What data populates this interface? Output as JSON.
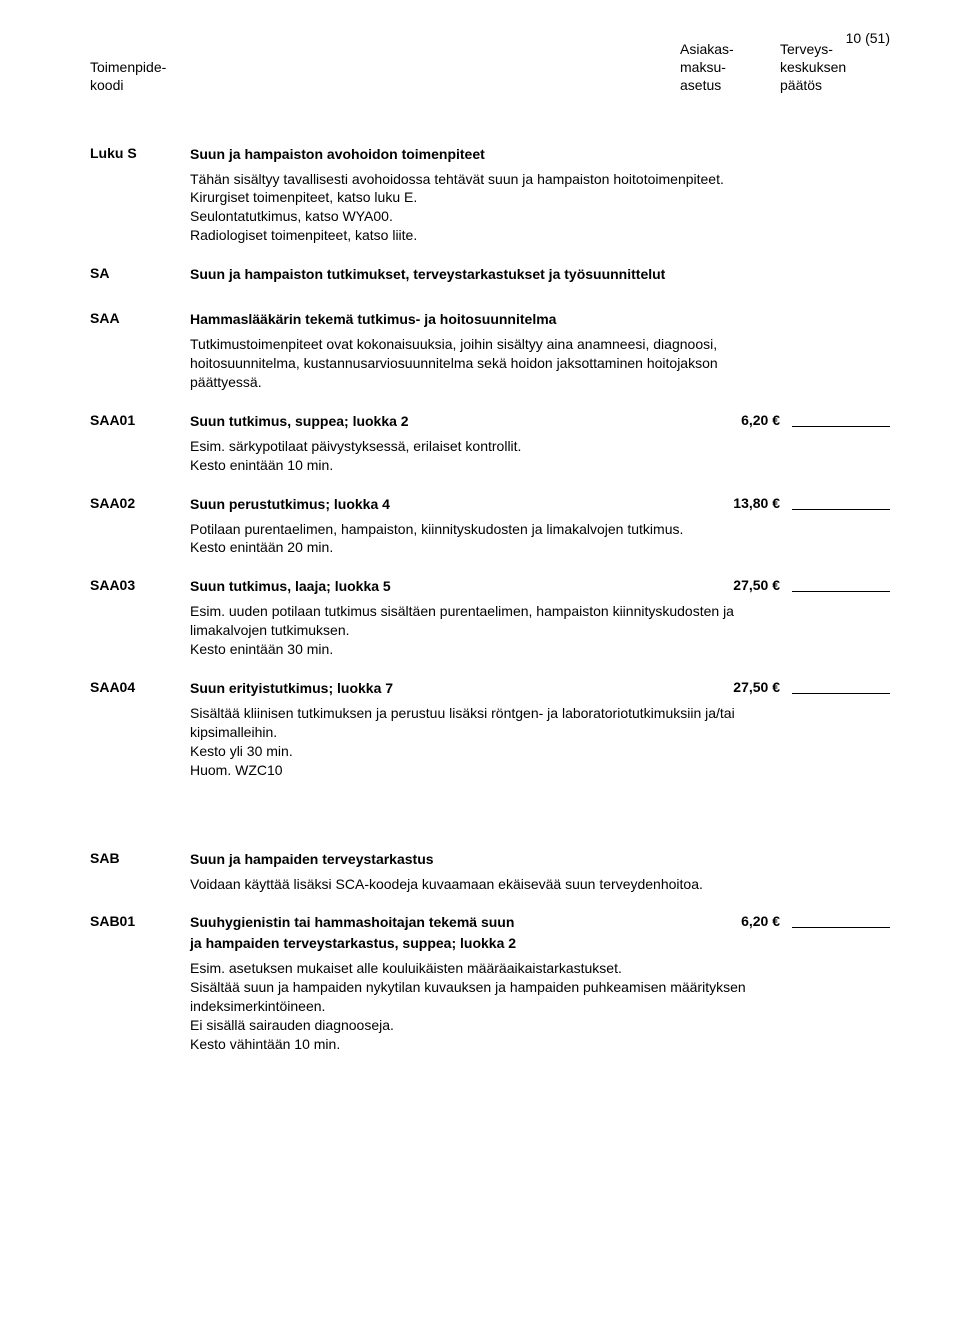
{
  "page_number": "10 (51)",
  "header": {
    "left_line1": "Toimenpide-",
    "left_line2": "koodi",
    "mid_line1": "Asiakas-",
    "mid_line2": "maksu-",
    "mid_line3": "asetus",
    "right_line1": "Terveys-",
    "right_line2": "keskuksen",
    "right_line3": "päätös"
  },
  "luku_s": {
    "code": "Luku S",
    "title": "Suun ja hampaiston avohoidon toimenpiteet",
    "desc": "Tähän sisältyy tavallisesti avohoidossa tehtävät suun ja hampaiston hoitotoimenpiteet.\nKirurgiset toimenpiteet, katso luku E.\nSeulontatutkimus, katso WYA00.\nRadiologiset toimenpiteet, katso liite."
  },
  "sa": {
    "code": "SA",
    "title": "Suun ja hampaiston tutkimukset, terveystarkastukset ja työsuunnittelut"
  },
  "saa": {
    "code": "SAA",
    "title": "Hammaslääkärin tekemä tutkimus- ja hoitosuunnitelma",
    "desc": "Tutkimustoimenpiteet ovat kokonaisuuksia, joihin sisältyy aina anamneesi, diagnoosi, hoitosuunnitelma, kustannusarviosuunnitelma sekä hoidon jaksottaminen hoitojakson päättyessä."
  },
  "items": [
    {
      "code": "SAA01",
      "title": "Suun tutkimus, suppea; luokka 2",
      "price": "6,20 €",
      "desc": "Esim. särkypotilaat päivystyksessä, erilaiset kontrollit.\nKesto enintään 10 min."
    },
    {
      "code": "SAA02",
      "title": "Suun perustutkimus; luokka 4",
      "price": "13,80 €",
      "desc": "Potilaan purentaelimen, hampaiston, kiinnityskudosten ja limakalvojen tutkimus.\nKesto enintään 20 min."
    },
    {
      "code": "SAA03",
      "title": "Suun tutkimus, laaja; luokka 5",
      "price": "27,50 €",
      "desc": "Esim. uuden potilaan tutkimus sisältäen purentaelimen, hampaiston kiinnityskudosten ja limakalvojen tutkimuksen.\nKesto enintään 30 min."
    },
    {
      "code": "SAA04",
      "title": "Suun erityistutkimus; luokka 7",
      "price": "27,50 €",
      "desc": "Sisältää kliinisen tutkimuksen ja perustuu lisäksi röntgen- ja laboratoriotutkimuksiin ja/tai kipsimalleihin.\nKesto yli 30 min.\nHuom. WZC10"
    }
  ],
  "sab": {
    "code": "SAB",
    "title": "Suun ja hampaiden terveystarkastus",
    "desc": "Voidaan käyttää lisäksi SCA-koodeja kuvaamaan ekäisevää suun terveydenhoitoa."
  },
  "sab01": {
    "code": "SAB01",
    "title_l1": "Suuhygienistin tai hammashoitajan tekemä suun",
    "title_l2": "ja hampaiden terveystarkastus, suppea; luokka 2",
    "price": "6,20 €",
    "desc": "Esim. asetuksen mukaiset alle kouluikäisten määräaikaistarkastukset.\nSisältää suun ja hampaiden nykytilan kuvauksen ja hampaiden puhkeamisen määrityksen indeksimerkintöineen.\nEi sisällä sairauden diagnooseja.\nKesto vähintään 10 min."
  }
}
